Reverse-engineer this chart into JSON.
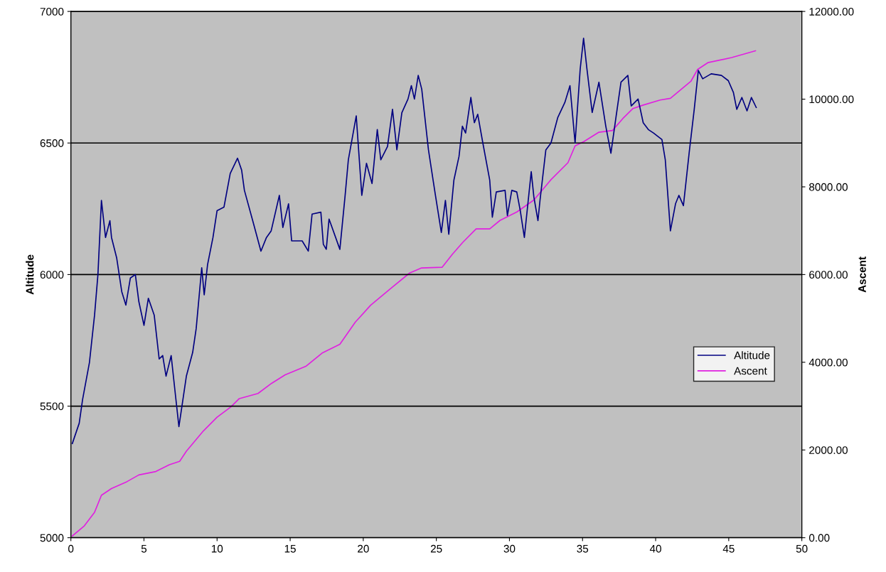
{
  "chart_data": {
    "type": "line",
    "ylabel": "Altitude",
    "y2label": "Ascent",
    "xlim": [
      0,
      50
    ],
    "xticks": [
      0,
      5,
      10,
      15,
      20,
      25,
      30,
      35,
      40,
      45,
      50
    ],
    "ylim": [
      5000,
      7000
    ],
    "yticks": [
      5000,
      5500,
      6000,
      6500,
      7000
    ],
    "y2lim": [
      0,
      12000
    ],
    "y2ticks": [
      {
        "value": 0,
        "label": "0.00"
      },
      {
        "value": 2000,
        "label": "2000.00"
      },
      {
        "value": 4000,
        "label": "4000.00"
      },
      {
        "value": 6000,
        "label": "6000.00"
      },
      {
        "value": 8000,
        "label": "8000.00"
      },
      {
        "value": 10000,
        "label": "10000.00"
      },
      {
        "value": 12000,
        "label": "12000.00"
      }
    ],
    "grid": "y",
    "legend": "right",
    "marker": "none",
    "line_style": "solid",
    "series": [
      {
        "name": "Altitude",
        "color": "#000080",
        "x": [
          0.1,
          0.57,
          0.8,
          1.27,
          1.62,
          1.85,
          2.09,
          2.37,
          2.67,
          2.78,
          3.13,
          3.48,
          3.76,
          4.07,
          4.41,
          4.65,
          5.0,
          5.3,
          5.7,
          6.04,
          6.28,
          6.51,
          6.86,
          7.16,
          7.39,
          7.63,
          7.9,
          8.33,
          8.57,
          8.95,
          9.12,
          9.35,
          9.72,
          10.0,
          10.47,
          10.9,
          11.4,
          11.68,
          11.87,
          12.5,
          13.0,
          13.38,
          13.7,
          14.26,
          14.5,
          14.89,
          15.1,
          15.82,
          16.24,
          16.5,
          17.1,
          17.27,
          17.47,
          17.66,
          18.4,
          18.75,
          18.98,
          19.52,
          19.9,
          20.22,
          20.6,
          20.96,
          21.2,
          21.66,
          22.0,
          22.3,
          22.64,
          23.06,
          23.29,
          23.5,
          23.76,
          24.0,
          24.46,
          24.92,
          25.34,
          25.62,
          25.85,
          26.2,
          26.55,
          26.78,
          27.0,
          27.36,
          27.6,
          27.83,
          28.18,
          28.65,
          28.83,
          29.1,
          29.7,
          29.86,
          30.16,
          30.5,
          30.74,
          31.02,
          31.49,
          31.67,
          31.95,
          32.09,
          32.49,
          32.84,
          33.3,
          33.79,
          34.14,
          34.49,
          34.84,
          35.07,
          35.3,
          35.66,
          36.12,
          36.59,
          36.94,
          37.3,
          37.63,
          38.1,
          38.33,
          38.8,
          39.15,
          39.5,
          39.85,
          40.43,
          40.66,
          41.01,
          41.36,
          41.59,
          41.9,
          42.29,
          42.64,
          42.92,
          43.22,
          43.8,
          44.5,
          44.97,
          45.32,
          45.55,
          45.9,
          46.25,
          46.55,
          46.88
        ],
        "values": [
          5358,
          5435,
          5525,
          5666,
          5846,
          6000,
          6282,
          6141,
          6205,
          6141,
          6064,
          5935,
          5884,
          5987,
          6000,
          5897,
          5807,
          5910,
          5846,
          5679,
          5692,
          5614,
          5692,
          5538,
          5422,
          5512,
          5614,
          5704,
          5794,
          6026,
          5923,
          6038,
          6141,
          6243,
          6256,
          6384,
          6442,
          6397,
          6320,
          6192,
          6089,
          6141,
          6166,
          6301,
          6179,
          6269,
          6128,
          6128,
          6089,
          6230,
          6237,
          6115,
          6096,
          6211,
          6096,
          6295,
          6436,
          6603,
          6301,
          6423,
          6346,
          6551,
          6436,
          6487,
          6628,
          6474,
          6615,
          6667,
          6718,
          6667,
          6757,
          6705,
          6474,
          6307,
          6160,
          6282,
          6153,
          6359,
          6449,
          6564,
          6538,
          6673,
          6577,
          6609,
          6500,
          6359,
          6218,
          6314,
          6320,
          6224,
          6320,
          6314,
          6243,
          6141,
          6391,
          6295,
          6205,
          6282,
          6474,
          6500,
          6596,
          6654,
          6718,
          6500,
          6782,
          6898,
          6782,
          6616,
          6731,
          6564,
          6461,
          6603,
          6731,
          6757,
          6641,
          6667,
          6577,
          6551,
          6538,
          6513,
          6436,
          6166,
          6269,
          6301,
          6262,
          6461,
          6628,
          6776,
          6744,
          6763,
          6757,
          6737,
          6692,
          6628,
          6673,
          6622,
          6673,
          6635
        ]
      },
      {
        "name": "Ascent",
        "color": "#e020e0",
        "axis": "y2",
        "x": [
          0.1,
          0.92,
          1.62,
          2.09,
          2.78,
          3.83,
          4.65,
          5.81,
          6.74,
          7.44,
          7.9,
          9.07,
          10.0,
          10.93,
          11.52,
          12.8,
          13.73,
          14.66,
          16.07,
          17.22,
          18.4,
          19.45,
          20.5,
          21.9,
          23.17,
          23.99,
          25.39,
          26.09,
          26.8,
          27.72,
          28.65,
          29.35,
          30.51,
          31.67,
          32.84,
          34.0,
          34.49,
          35.07,
          36.12,
          37.05,
          37.75,
          38.45,
          39.15,
          40.31,
          41.01,
          41.71,
          42.41,
          42.87,
          43.57,
          45.2,
          46.83
        ],
        "values": [
          40,
          270,
          580,
          967,
          1122,
          1277,
          1431,
          1509,
          1663,
          1741,
          1973,
          2437,
          2747,
          2979,
          3172,
          3288,
          3520,
          3714,
          3907,
          4217,
          4410,
          4913,
          5300,
          5687,
          6035,
          6151,
          6166,
          6460,
          6731,
          7041,
          7041,
          7234,
          7428,
          7699,
          8163,
          8550,
          8936,
          9029,
          9246,
          9285,
          9556,
          9787,
          9865,
          9981,
          10019,
          10213,
          10406,
          10677,
          10832,
          10948,
          11102
        ]
      }
    ]
  }
}
